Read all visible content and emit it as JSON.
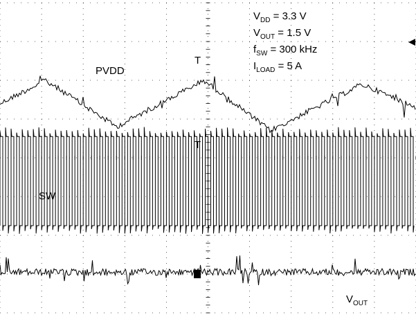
{
  "chart_data": {
    "type": "line",
    "title": "",
    "xlabel": "",
    "ylabel": "",
    "grid": true,
    "grid_divisions": {
      "horizontal": 10,
      "vertical": 8
    },
    "series": [
      {
        "name": "PVDD",
        "kind": "ripple",
        "x_frac": [
          0.0,
          0.11,
          0.28,
          0.49,
          0.65,
          0.87,
          1.0
        ],
        "level_div": [
          2.6,
          2.0,
          3.2,
          2.0,
          3.3,
          2.1,
          2.7
        ]
      },
      {
        "name": "SW",
        "kind": "switching",
        "cycles": 75,
        "low_div": 5.75,
        "high_div": 3.45
      },
      {
        "name": "VOUT",
        "kind": "noise",
        "level_div": 6.95
      }
    ],
    "series_labels": {
      "pvdd": "PVDD",
      "sw": "SW",
      "vout": {
        "base": "V",
        "sub": "OUT"
      }
    },
    "annotations": [
      {
        "base": "V",
        "sub": "DD",
        "rest": " = 3.3 V"
      },
      {
        "base": "V",
        "sub": "OUT",
        "rest": " = 1.5 V"
      },
      {
        "base": "f",
        "sub": "SW",
        "rest": " = 300 kHz"
      },
      {
        "base": "I",
        "sub": "LOAD",
        "rest": " = 5 A"
      }
    ],
    "trigger_marker": "T",
    "colors": {
      "trace": "#000000",
      "grid": "#000000",
      "background": "#ffffff"
    }
  }
}
